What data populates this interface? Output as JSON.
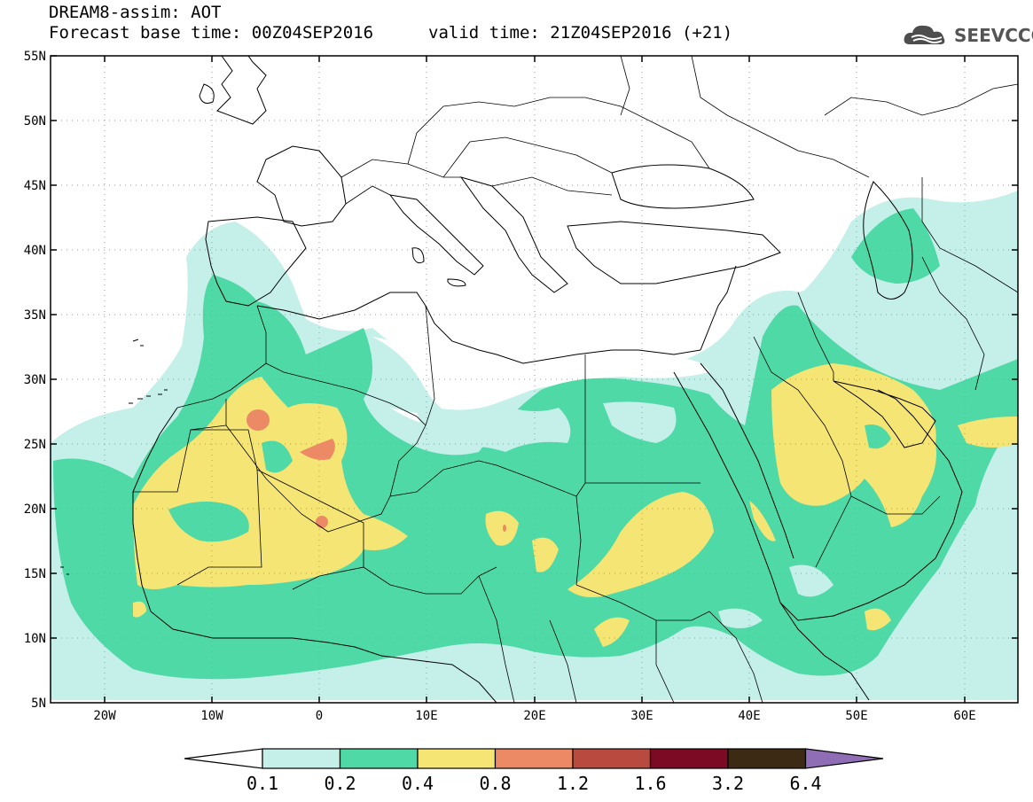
{
  "header": {
    "title": "DREAM8-assim: AOT",
    "base_time": "Forecast base time: 00Z04SEP2016",
    "valid_time": "valid time: 21Z04SEP2016 (+21)"
  },
  "logo": {
    "text": "SEEVCCC",
    "icon": "cloud-icon"
  },
  "map": {
    "lat_labels": [
      "55N",
      "50N",
      "45N",
      "40N",
      "35N",
      "30N",
      "25N",
      "20N",
      "15N",
      "10N",
      "5N"
    ],
    "lon_labels": [
      "20W",
      "10W",
      "0",
      "10E",
      "20E",
      "30E",
      "40E",
      "50E",
      "60E"
    ],
    "lat_range": [
      5,
      55
    ],
    "lon_range": [
      -25,
      65
    ],
    "grid": "dotted"
  },
  "legend": {
    "labels": [
      "0.1",
      "0.2",
      "0.4",
      "0.8",
      "1.2",
      "1.6",
      "3.2",
      "6.4"
    ],
    "colors": [
      "#ffffff",
      "#c5efe9",
      "#4fd9a7",
      "#f5e574",
      "#ec8a66",
      "#b84a3f",
      "#7d0a24",
      "#3d2a14",
      "#8f6eb5"
    ]
  },
  "colors": {
    "level_1": "#c5efe9",
    "level_2": "#4fd9a7",
    "level_3": "#f5e574",
    "level_4": "#ec8a66"
  }
}
